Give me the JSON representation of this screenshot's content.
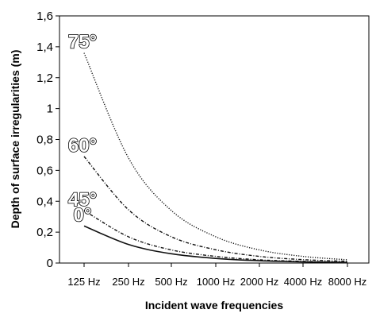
{
  "chart_data": {
    "type": "line",
    "xlabel": "Incident wave frequencies",
    "ylabel": "Depth of surface irregularities (m)",
    "categories": [
      "125 Hz",
      "250 Hz",
      "500 Hz",
      "1000 Hz",
      "2000 Hz",
      "4000 Hz",
      "8000 Hz"
    ],
    "ylim": [
      0,
      1.6
    ],
    "yticks": [
      "0",
      "0,2",
      "0,4",
      "0,6",
      "0,8",
      "1",
      "1,2",
      "1,4",
      "1,6"
    ],
    "grid": false,
    "series": [
      {
        "name": "0°",
        "style": "solid",
        "values": [
          0.24,
          0.12,
          0.06,
          0.03,
          0.015,
          0.0075,
          0.004
        ]
      },
      {
        "name": "45°",
        "style": "dashdot",
        "values": [
          0.34,
          0.17,
          0.085,
          0.043,
          0.021,
          0.011,
          0.005
        ]
      },
      {
        "name": "60°",
        "style": "dashdot",
        "values": [
          0.69,
          0.345,
          0.17,
          0.086,
          0.043,
          0.022,
          0.011
        ]
      },
      {
        "name": "75°",
        "style": "dotted",
        "values": [
          1.36,
          0.68,
          0.34,
          0.17,
          0.085,
          0.043,
          0.021
        ]
      }
    ]
  }
}
